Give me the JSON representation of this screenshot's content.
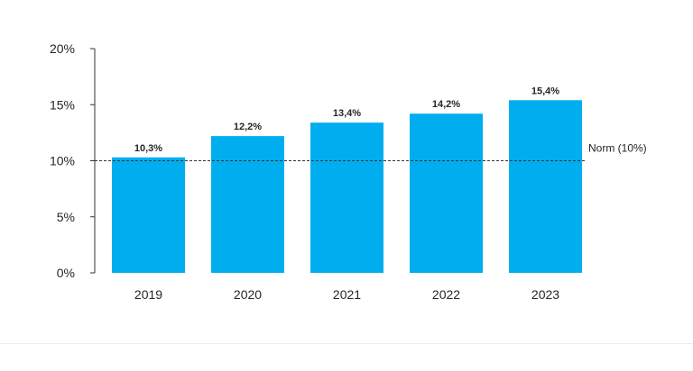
{
  "chart_data": {
    "type": "bar",
    "categories": [
      "2019",
      "2020",
      "2021",
      "2022",
      "2023"
    ],
    "values": [
      10.3,
      12.2,
      13.4,
      14.2,
      15.4
    ],
    "value_labels": [
      "10,3%",
      "12,2%",
      "13,4%",
      "14,2%",
      "15,4%"
    ],
    "ylim": [
      0,
      20
    ],
    "yticks": [
      0,
      5,
      10,
      15,
      20
    ],
    "ytick_labels": [
      "0%",
      "5%",
      "10%",
      "15%",
      "20%"
    ],
    "reference_line": {
      "value": 10,
      "label": "Norm (10%)",
      "style": "dashed"
    },
    "bar_color": "#00aeef",
    "grid": false,
    "title": "",
    "xlabel": "",
    "ylabel": ""
  }
}
